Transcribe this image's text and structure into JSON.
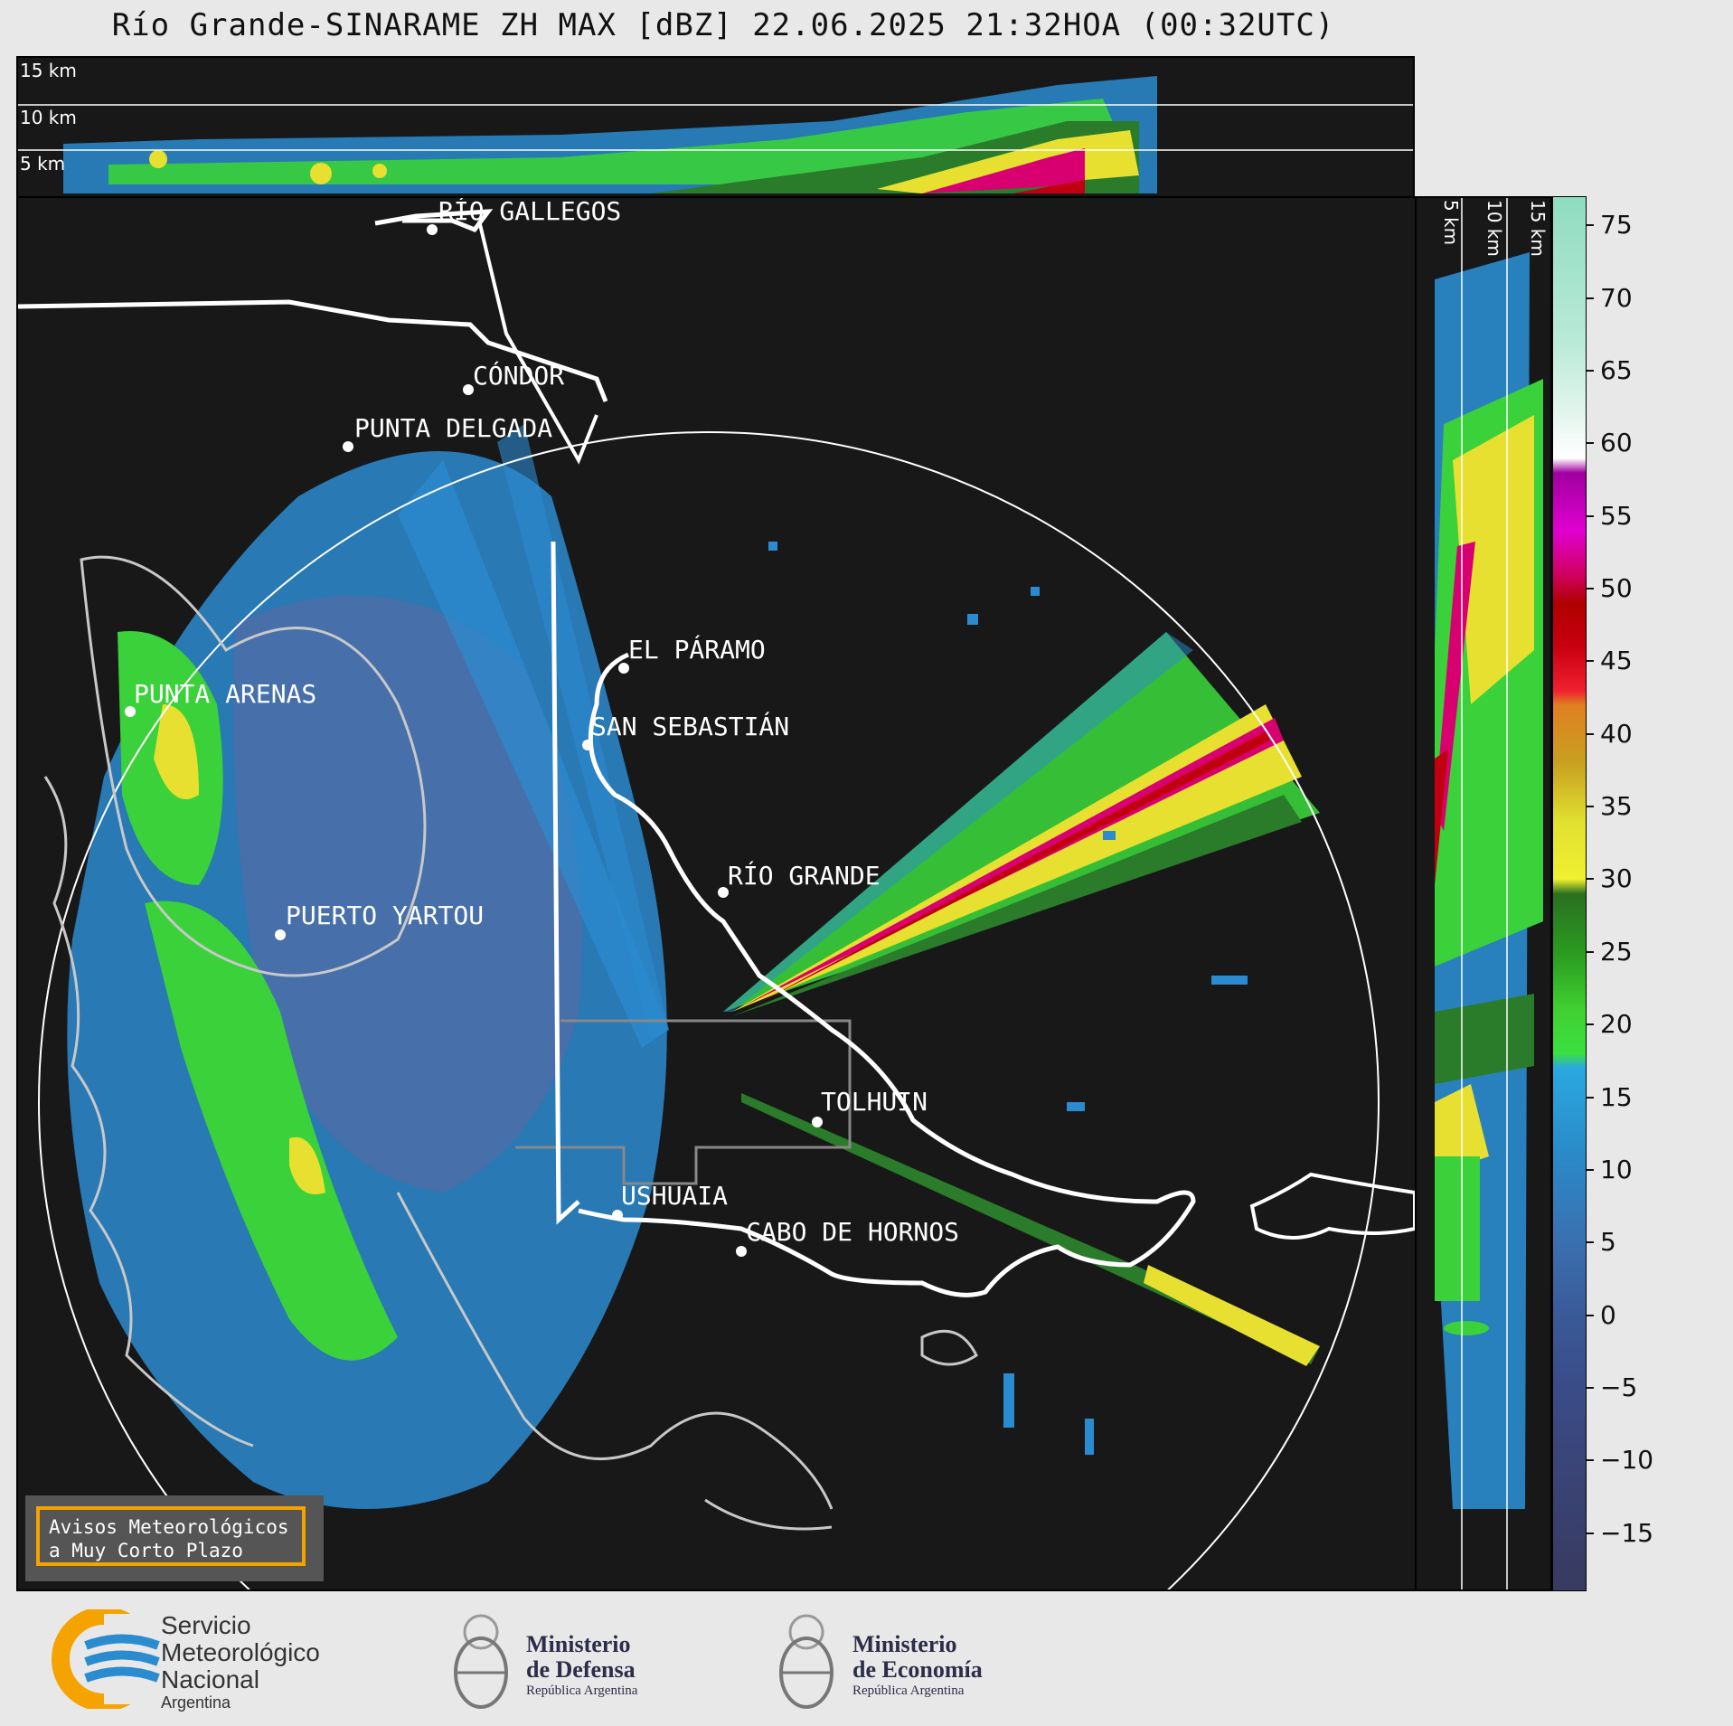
{
  "title": "Río Grande-SINARAME ZH MAX [dBZ] 22.06.2025 21:32HOA (00:32UTC)",
  "height_labels": [
    "15 km",
    "10 km",
    "5 km"
  ],
  "cities": [
    {
      "name": "RÍO GALLEGOS"
    },
    {
      "name": "CÓNDOR"
    },
    {
      "name": "PUNTA DELGADA"
    },
    {
      "name": "EL PÁRAMO"
    },
    {
      "name": "PUNTA ARENAS"
    },
    {
      "name": "SAN SEBASTIÁN"
    },
    {
      "name": "RÍO GRANDE"
    },
    {
      "name": "PUERTO YARTOU"
    },
    {
      "name": "TOLHUIN"
    },
    {
      "name": "USHUAIA"
    },
    {
      "name": "CABO DE HORNOS"
    }
  ],
  "colorbar": {
    "unit": "dBZ",
    "ticks": [
      "75",
      "70",
      "65",
      "60",
      "55",
      "50",
      "45",
      "40",
      "35",
      "30",
      "25",
      "20",
      "15",
      "10",
      "5",
      "0",
      "−5",
      "−10",
      "−15"
    ],
    "range": [
      -19,
      77
    ]
  },
  "avisos": {
    "line1": "Avisos Meteorológicos",
    "line2": "a Muy Corto Plazo"
  },
  "logos": {
    "smn": {
      "line1": "Servicio",
      "line2": "Meteorológico",
      "line3": "Nacional",
      "line4": "Argentina"
    },
    "defensa": {
      "line1": "Ministerio",
      "line2": "de Defensa",
      "line3": "República Argentina"
    },
    "economia": {
      "line1": "Ministerio",
      "line2": "de Economía",
      "line3": "República Argentina"
    }
  }
}
